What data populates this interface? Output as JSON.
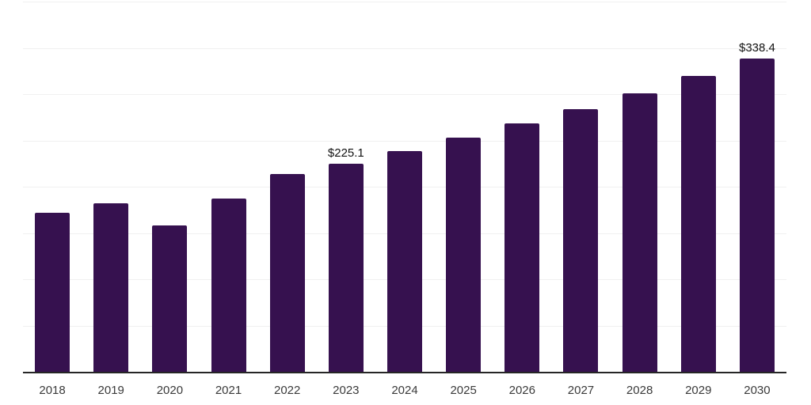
{
  "chart_data": {
    "type": "bar",
    "title": "",
    "xlabel": "",
    "ylabel": "",
    "categories": [
      "2018",
      "2019",
      "2020",
      "2021",
      "2022",
      "2023",
      "2024",
      "2025",
      "2026",
      "2027",
      "2028",
      "2029",
      "2030"
    ],
    "values": [
      171.9,
      182.2,
      158.1,
      187.3,
      213.8,
      225.1,
      238.6,
      252.9,
      268.1,
      284.2,
      301.2,
      319.3,
      338.4
    ],
    "bar_labels": [
      "",
      "",
      "",
      "",
      "",
      "$225.1",
      "",
      "",
      "",
      "",
      "",
      "",
      "$338.4"
    ],
    "currency_prefix": "$",
    "ylim": [
      0,
      400
    ],
    "gridline_step": 50,
    "grid": true,
    "legend_position": "none",
    "colors": {
      "bar": "#36114F",
      "gridline": "#f0f0f0",
      "axis_line": "#262626",
      "tick_label": "#3a3a3a",
      "data_label": "#111111",
      "background": "#ffffff"
    }
  }
}
